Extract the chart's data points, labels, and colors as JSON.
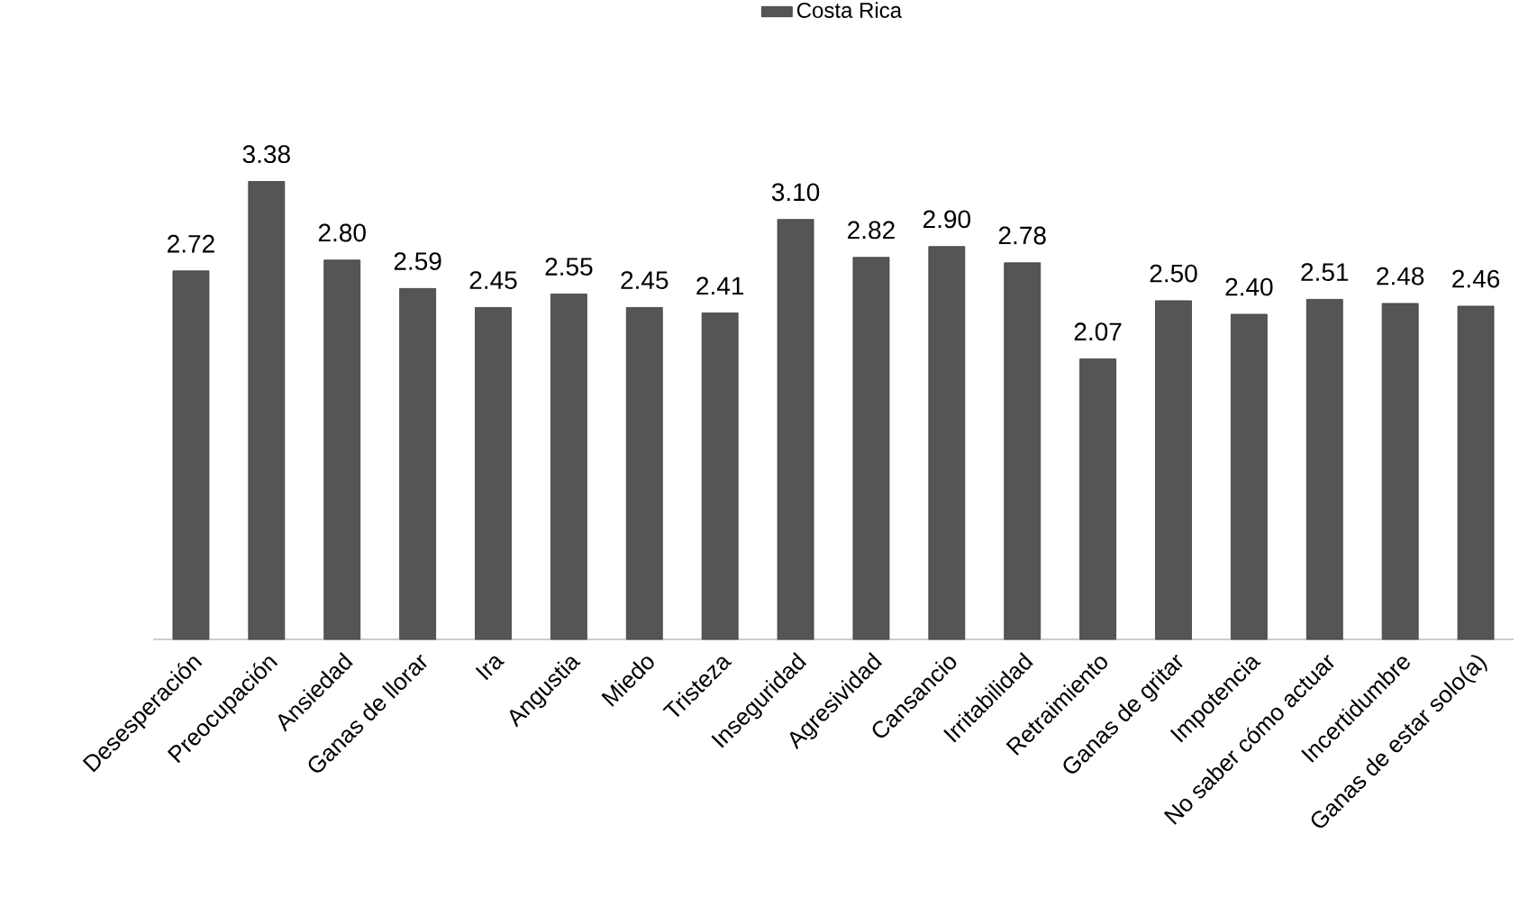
{
  "chart_data": {
    "type": "bar",
    "categories": [
      "Desesperación",
      "Preocupación",
      "Ansiedad",
      "Ganas de llorar",
      "Ira",
      "Angustia",
      "Miedo",
      "Tristeza",
      "Inseguridad",
      "Agresividad",
      "Cansancio",
      "Irritabilidad",
      "Retraimiento",
      "Ganas de gritar",
      "Impotencia",
      "No saber cómo actuar",
      "Incertidumbre",
      "Ganas de estar solo(a)"
    ],
    "series": [
      {
        "name": "Costa Rica",
        "color": "#555555",
        "values": [
          2.72,
          3.38,
          2.8,
          2.59,
          2.45,
          2.55,
          2.45,
          2.41,
          3.1,
          2.82,
          2.9,
          2.78,
          2.07,
          2.5,
          2.4,
          2.51,
          2.48,
          2.46
        ],
        "value_labels": [
          "2.72",
          "3.38",
          "2.80",
          "2.59",
          "2.45",
          "2.55",
          "2.45",
          "2.41",
          "3.10",
          "2.82",
          "2.90",
          "2.78",
          "2.07",
          "2.50",
          "2.40",
          "2.51",
          "2.48",
          "2.46"
        ]
      }
    ],
    "legend": "top"
  }
}
